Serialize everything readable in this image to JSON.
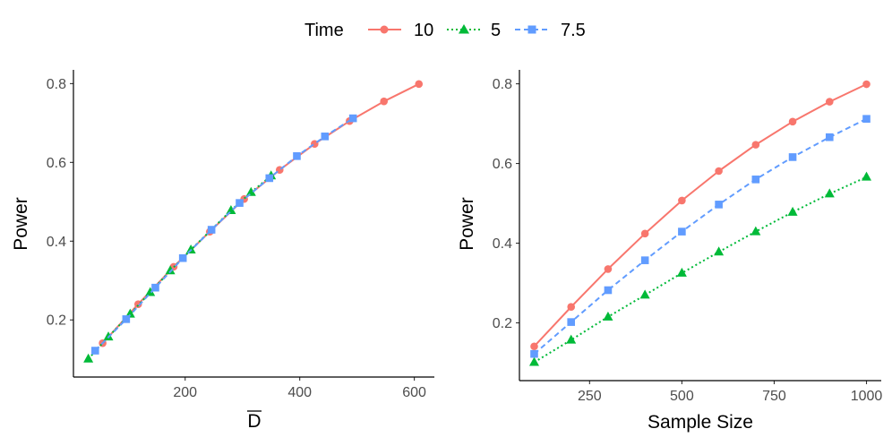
{
  "legend": {
    "title": "Time",
    "entries": [
      {
        "label": "10",
        "color": "#F8766D",
        "marker": "circle",
        "dash": "solid"
      },
      {
        "label": "5",
        "color": "#00BA38",
        "marker": "triangle",
        "dash": "dotted"
      },
      {
        "label": "7.5",
        "color": "#619CFF",
        "marker": "square",
        "dash": "dashed"
      }
    ]
  },
  "chart_data": [
    {
      "type": "line",
      "title": "",
      "xlabel": "D",
      "xlabel_overline": true,
      "ylabel": "Power",
      "xlim": [
        5,
        635
      ],
      "ylim": [
        0.055,
        0.835
      ],
      "xticks": [
        200,
        400,
        600
      ],
      "yticks": [
        0.2,
        0.4,
        0.6,
        0.8
      ],
      "xtick_labels": [
        "200",
        "400",
        "600"
      ],
      "ytick_labels": [
        "0.2",
        "0.4",
        "0.6",
        "0.8"
      ],
      "grid": false,
      "series": [
        {
          "name": "10",
          "x": [
            56,
            118,
            180,
            243,
            303,
            365,
            426,
            487,
            547,
            608
          ],
          "y": [
            0.141,
            0.24,
            0.335,
            0.424,
            0.507,
            0.581,
            0.647,
            0.705,
            0.755,
            0.799
          ]
        },
        {
          "name": "5",
          "x": [
            31,
            66,
            104,
            139,
            174,
            210,
            280,
            315,
            350
          ],
          "y": [
            0.101,
            0.157,
            0.215,
            0.27,
            0.325,
            0.378,
            0.478,
            0.524,
            0.566
          ]
        },
        {
          "name": "7.5",
          "x": [
            43,
            97,
            148,
            196,
            246,
            295,
            347,
            395,
            444,
            493
          ],
          "y": [
            0.122,
            0.202,
            0.282,
            0.357,
            0.429,
            0.497,
            0.56,
            0.616,
            0.666,
            0.712
          ]
        }
      ]
    },
    {
      "type": "line",
      "title": "",
      "xlabel": "Sample Size",
      "xlabel_overline": false,
      "ylabel": "Power",
      "xlim": [
        60,
        1040
      ],
      "ylim": [
        0.055,
        0.835
      ],
      "xticks": [
        250,
        500,
        750,
        1000
      ],
      "yticks": [
        0.2,
        0.4,
        0.6,
        0.8
      ],
      "xtick_labels": [
        "250",
        "500",
        "750",
        "1000"
      ],
      "ytick_labels": [
        "0.2",
        "0.4",
        "0.6",
        "0.8"
      ],
      "grid": false,
      "series": [
        {
          "name": "10",
          "x": [
            100,
            200,
            300,
            400,
            500,
            600,
            700,
            800,
            900,
            1000
          ],
          "y": [
            0.141,
            0.24,
            0.335,
            0.424,
            0.507,
            0.581,
            0.647,
            0.705,
            0.755,
            0.799
          ]
        },
        {
          "name": "5",
          "x": [
            100,
            200,
            300,
            400,
            500,
            600,
            700,
            800,
            900,
            1000
          ],
          "y": [
            0.101,
            0.157,
            0.215,
            0.27,
            0.325,
            0.378,
            0.429,
            0.478,
            0.524,
            0.566
          ]
        },
        {
          "name": "7.5",
          "x": [
            100,
            200,
            300,
            400,
            500,
            600,
            700,
            800,
            900,
            1000
          ],
          "y": [
            0.122,
            0.202,
            0.282,
            0.357,
            0.429,
            0.497,
            0.56,
            0.616,
            0.666,
            0.712
          ]
        }
      ]
    }
  ]
}
